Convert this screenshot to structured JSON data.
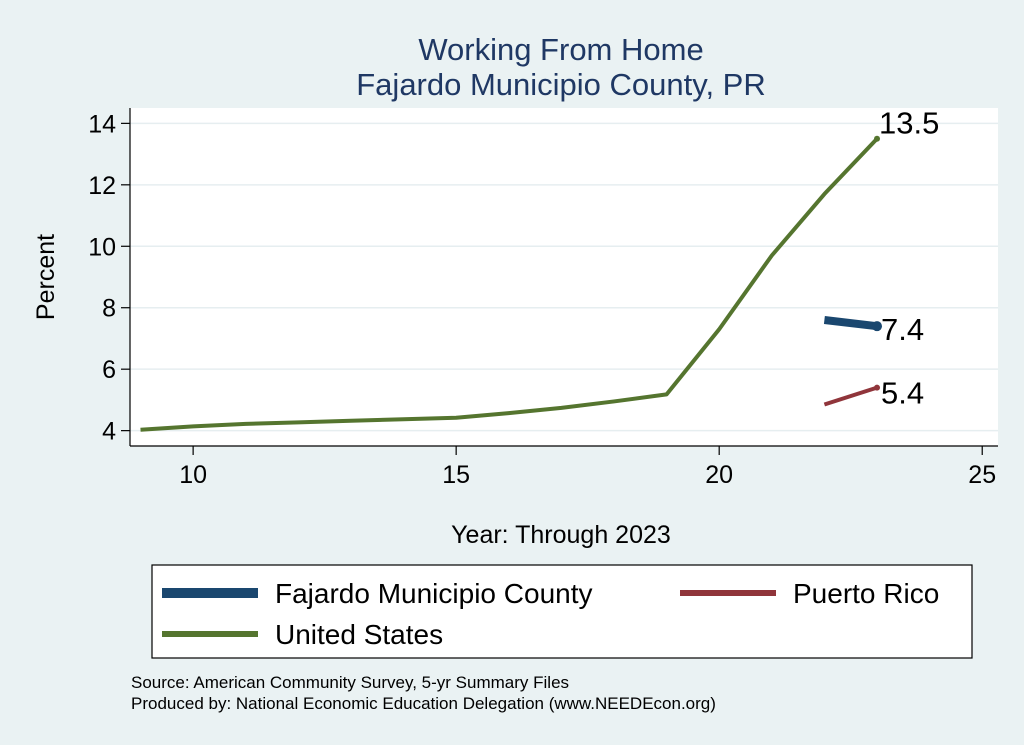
{
  "chart_data": {
    "type": "line",
    "title": [
      "Working From Home",
      "Fajardo Municipio County, PR"
    ],
    "xlabel": "Year: Through 2023",
    "ylabel": "Percent",
    "xlim": [
      8.8,
      25.3
    ],
    "ylim": [
      3.5,
      14.5
    ],
    "xticks": [
      10,
      15,
      20,
      25
    ],
    "yticks": [
      4,
      6,
      8,
      10,
      12,
      14
    ],
    "grid": true,
    "legend_position": "bottom",
    "series": [
      {
        "name": "Fajardo Municipio County",
        "color": "#1a476f",
        "width": 8,
        "x": [
          22,
          23
        ],
        "y": [
          7.6,
          7.4
        ],
        "end_label": "7.4"
      },
      {
        "name": "Puerto Rico",
        "color": "#90353b",
        "width": 4,
        "x": [
          22,
          23
        ],
        "y": [
          4.85,
          5.4
        ],
        "end_label": "5.4"
      },
      {
        "name": "United States",
        "color": "#55752f",
        "width": 4,
        "x": [
          9,
          10,
          11,
          12,
          13,
          14,
          15,
          16,
          17,
          18,
          19,
          20,
          21,
          22,
          23
        ],
        "y": [
          4.03,
          4.14,
          4.22,
          4.27,
          4.32,
          4.37,
          4.42,
          4.57,
          4.74,
          4.95,
          5.18,
          7.3,
          9.7,
          11.7,
          13.5
        ],
        "end_label": "13.5"
      }
    ]
  },
  "source_note": [
    "Source: American Community Survey, 5-yr Summary Files",
    "Produced by: National Economic Education Delegation (www.NEEDEcon.org)"
  ]
}
